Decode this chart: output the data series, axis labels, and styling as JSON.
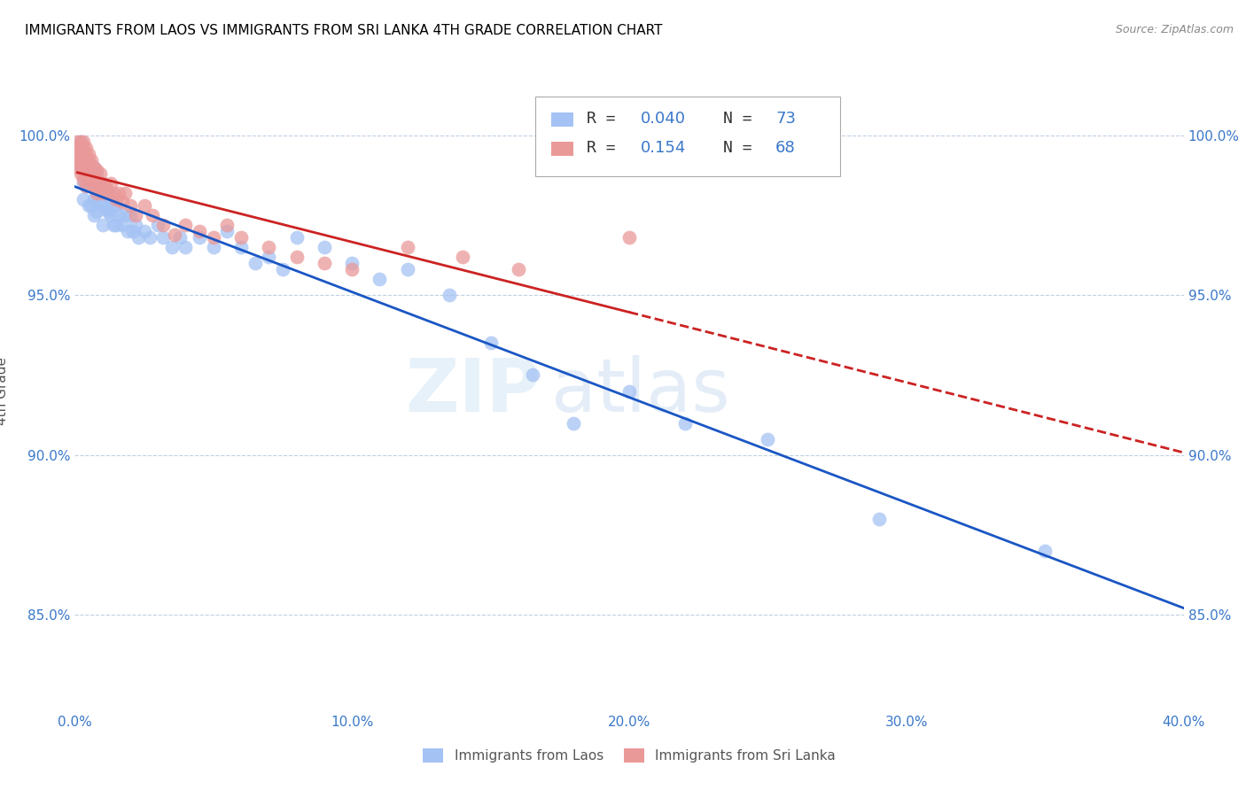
{
  "title": "IMMIGRANTS FROM LAOS VS IMMIGRANTS FROM SRI LANKA 4TH GRADE CORRELATION CHART",
  "source": "Source: ZipAtlas.com",
  "xlabel_ticks": [
    "0.0%",
    "10.0%",
    "20.0%",
    "30.0%",
    "40.0%"
  ],
  "xlabel_tick_vals": [
    0.0,
    0.1,
    0.2,
    0.3,
    0.4
  ],
  "ylabel_ticks": [
    "85.0%",
    "90.0%",
    "95.0%",
    "100.0%"
  ],
  "ylabel_tick_vals": [
    0.85,
    0.9,
    0.95,
    1.0
  ],
  "xmin": 0.0,
  "xmax": 0.4,
  "ymin": 0.82,
  "ymax": 1.02,
  "ylabel": "4th Grade",
  "blue_color": "#a4c2f4",
  "pink_color": "#ea9999",
  "line_blue": "#1a56c4",
  "line_pink": "#cc2222",
  "watermark_zip": "ZIP",
  "watermark_atlas": "atlas",
  "blue_scatter_x": [
    0.001,
    0.002,
    0.002,
    0.003,
    0.003,
    0.003,
    0.004,
    0.004,
    0.004,
    0.005,
    0.005,
    0.005,
    0.006,
    0.006,
    0.006,
    0.007,
    0.007,
    0.007,
    0.007,
    0.008,
    0.008,
    0.008,
    0.009,
    0.009,
    0.01,
    0.01,
    0.01,
    0.011,
    0.011,
    0.012,
    0.012,
    0.013,
    0.013,
    0.014,
    0.014,
    0.015,
    0.015,
    0.016,
    0.017,
    0.018,
    0.019,
    0.02,
    0.021,
    0.022,
    0.023,
    0.025,
    0.027,
    0.03,
    0.032,
    0.035,
    0.038,
    0.04,
    0.045,
    0.05,
    0.055,
    0.06,
    0.065,
    0.07,
    0.075,
    0.08,
    0.09,
    0.1,
    0.11,
    0.12,
    0.135,
    0.15,
    0.165,
    0.18,
    0.2,
    0.22,
    0.25,
    0.29,
    0.35
  ],
  "blue_scatter_y": [
    0.99,
    0.998,
    0.992,
    0.99,
    0.985,
    0.98,
    0.992,
    0.988,
    0.984,
    0.99,
    0.985,
    0.978,
    0.988,
    0.984,
    0.978,
    0.99,
    0.985,
    0.98,
    0.975,
    0.988,
    0.982,
    0.976,
    0.985,
    0.979,
    0.985,
    0.978,
    0.972,
    0.983,
    0.977,
    0.982,
    0.976,
    0.98,
    0.975,
    0.978,
    0.972,
    0.978,
    0.972,
    0.975,
    0.972,
    0.975,
    0.97,
    0.975,
    0.97,
    0.972,
    0.968,
    0.97,
    0.968,
    0.972,
    0.968,
    0.965,
    0.968,
    0.965,
    0.968,
    0.965,
    0.97,
    0.965,
    0.96,
    0.962,
    0.958,
    0.968,
    0.965,
    0.96,
    0.955,
    0.958,
    0.95,
    0.935,
    0.925,
    0.91,
    0.92,
    0.91,
    0.905,
    0.88,
    0.87
  ],
  "pink_scatter_x": [
    0.001,
    0.001,
    0.001,
    0.001,
    0.001,
    0.002,
    0.002,
    0.002,
    0.002,
    0.002,
    0.002,
    0.003,
    0.003,
    0.003,
    0.003,
    0.003,
    0.003,
    0.003,
    0.004,
    0.004,
    0.004,
    0.004,
    0.004,
    0.004,
    0.005,
    0.005,
    0.005,
    0.005,
    0.006,
    0.006,
    0.006,
    0.007,
    0.007,
    0.007,
    0.008,
    0.008,
    0.008,
    0.009,
    0.009,
    0.01,
    0.01,
    0.011,
    0.012,
    0.013,
    0.014,
    0.015,
    0.016,
    0.017,
    0.018,
    0.02,
    0.022,
    0.025,
    0.028,
    0.032,
    0.036,
    0.04,
    0.045,
    0.05,
    0.055,
    0.06,
    0.07,
    0.08,
    0.09,
    0.1,
    0.12,
    0.14,
    0.16,
    0.2
  ],
  "pink_scatter_y": [
    0.998,
    0.996,
    0.994,
    0.992,
    0.99,
    0.998,
    0.996,
    0.994,
    0.992,
    0.99,
    0.988,
    0.998,
    0.996,
    0.994,
    0.992,
    0.99,
    0.988,
    0.986,
    0.996,
    0.994,
    0.992,
    0.99,
    0.988,
    0.984,
    0.994,
    0.992,
    0.99,
    0.986,
    0.992,
    0.989,
    0.986,
    0.99,
    0.987,
    0.984,
    0.989,
    0.986,
    0.982,
    0.988,
    0.984,
    0.985,
    0.982,
    0.984,
    0.982,
    0.985,
    0.982,
    0.98,
    0.982,
    0.979,
    0.982,
    0.978,
    0.975,
    0.978,
    0.975,
    0.972,
    0.969,
    0.972,
    0.97,
    0.968,
    0.972,
    0.968,
    0.965,
    0.962,
    0.96,
    0.958,
    0.965,
    0.962,
    0.958,
    0.968
  ]
}
